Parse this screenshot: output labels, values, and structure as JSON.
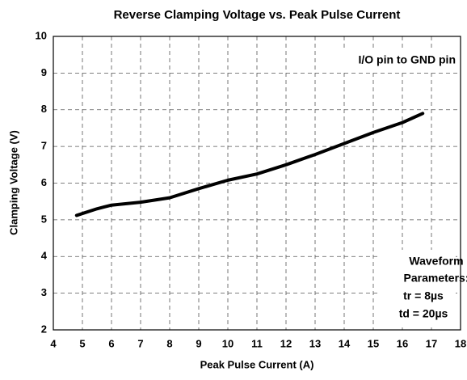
{
  "chart_data": {
    "type": "line",
    "title": "Reverse Clamping Voltage vs. Peak Pulse Current",
    "x_label": "Peak Pulse Current (A)",
    "y_label": "Clamping Voltage (V)",
    "annotations": [
      "I/O pin to GND pin",
      "Waveform",
      "Parameters:",
      "tr = 8µs",
      "td = 20µs"
    ],
    "series": [
      {
        "name": "Clamping Voltage",
        "color": "#000000",
        "x": [
          4.8,
          5.5,
          6,
          7,
          8,
          9,
          10,
          11,
          12,
          13,
          14,
          15,
          16,
          16.7
        ],
        "values": [
          5.12,
          5.3,
          5.4,
          5.48,
          5.6,
          5.85,
          6.08,
          6.25,
          6.5,
          6.78,
          7.08,
          7.38,
          7.65,
          7.9
        ]
      }
    ],
    "xlim": [
      4,
      18
    ],
    "xticks": [
      4,
      5,
      6,
      7,
      8,
      9,
      10,
      11,
      12,
      13,
      14,
      15,
      16,
      17,
      18
    ],
    "ylim": [
      2,
      10
    ],
    "yticks": [
      2,
      3,
      4,
      5,
      6,
      7,
      8,
      9,
      10
    ],
    "grid": true
  }
}
